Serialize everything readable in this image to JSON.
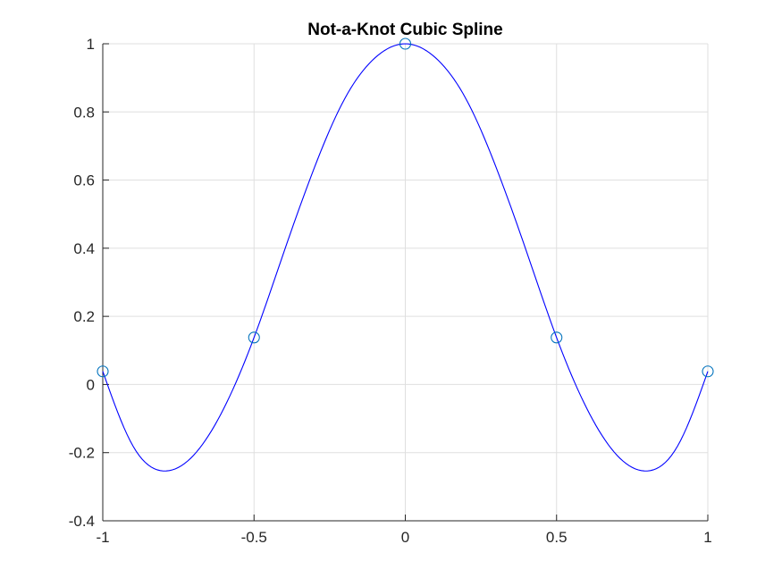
{
  "chart_data": {
    "type": "line",
    "title": "Not-a-Knot Cubic Spline",
    "xlabel": "",
    "ylabel": "",
    "xlim": [
      -1,
      1
    ],
    "ylim": [
      -0.4,
      1
    ],
    "xticks": [
      -1,
      -0.5,
      0,
      0.5,
      1
    ],
    "xtick_labels": [
      "-1",
      "-0.5",
      "0",
      "0.5",
      "1"
    ],
    "yticks": [
      -0.4,
      -0.2,
      0,
      0.2,
      0.4,
      0.6,
      0.8,
      1
    ],
    "ytick_labels": [
      "-0.4",
      "-0.2",
      "0",
      "0.2",
      "0.4",
      "0.6",
      "0.8",
      "1"
    ],
    "grid": true,
    "series": [
      {
        "style": "line",
        "color": "#0000ff",
        "x": [
          -1,
          -0.9,
          -0.8,
          -0.7,
          -0.6,
          -0.5,
          -0.4,
          -0.3,
          -0.2,
          -0.1,
          0,
          0.1,
          0.2,
          0.3,
          0.4,
          0.5,
          0.6,
          0.7,
          0.8,
          0.9,
          1
        ],
        "y": [
          0.0385,
          -0.1808,
          -0.2538,
          -0.2079,
          -0.0703,
          0.1379,
          0.392,
          0.6377,
          0.8392,
          0.9588,
          1.0,
          0.9588,
          0.8392,
          0.6377,
          0.392,
          0.1379,
          -0.0703,
          -0.2079,
          -0.2538,
          -0.1808,
          0.0385
        ]
      },
      {
        "style": "markers",
        "marker": "circle",
        "color": "#0072bd",
        "x": [
          -1,
          -0.5,
          0,
          0.5,
          1
        ],
        "y": [
          0.0385,
          0.1379,
          1.0,
          0.1379,
          0.0385
        ]
      }
    ]
  }
}
